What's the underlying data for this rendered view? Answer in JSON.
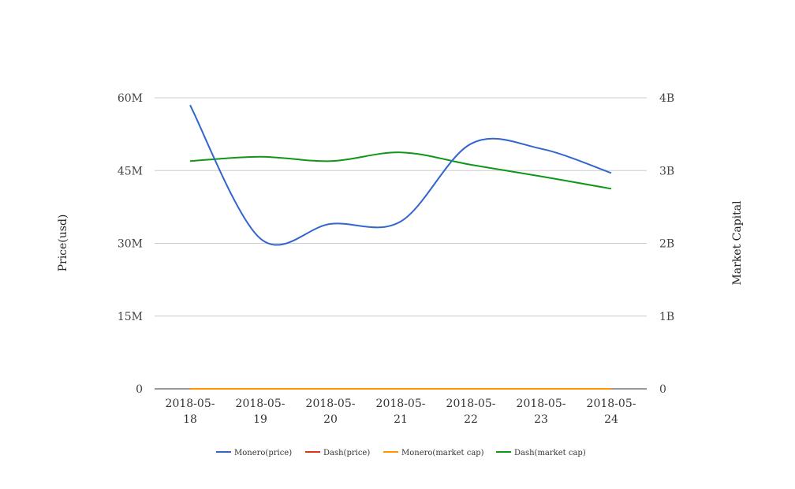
{
  "chart_data": {
    "type": "line",
    "categories": [
      "2018-05-18",
      "2018-05-19",
      "2018-05-20",
      "2018-05-21",
      "2018-05-22",
      "2018-05-23",
      "2018-05-24"
    ],
    "category_lines": [
      [
        "2018-05-",
        "18"
      ],
      [
        "2018-05-",
        "19"
      ],
      [
        "2018-05-",
        "20"
      ],
      [
        "2018-05-",
        "21"
      ],
      [
        "2018-05-",
        "22"
      ],
      [
        "2018-05-",
        "23"
      ],
      [
        "2018-05-",
        "24"
      ]
    ],
    "left_axis": {
      "label": "Price(usd)",
      "range": [
        0,
        60000000
      ],
      "ticks": [
        0,
        15000000,
        30000000,
        45000000,
        60000000
      ],
      "tick_labels": [
        "0",
        "15M",
        "30M",
        "45M",
        "60M"
      ]
    },
    "right_axis": {
      "label": "Market Capital",
      "range": [
        0,
        4000000000
      ],
      "ticks": [
        0,
        1000000000,
        2000000000,
        3000000000,
        4000000000
      ],
      "tick_labels": [
        "0",
        "1B",
        "2B",
        "3B",
        "4B"
      ]
    },
    "grid": true,
    "legend_position": "bottom",
    "series": [
      {
        "name": "Monero(price)",
        "axis": "left",
        "color": "#3366cc",
        "values": [
          58500000,
          31000000,
          34000000,
          34500000,
          50500000,
          49500000,
          44500000
        ]
      },
      {
        "name": "Dash(price)",
        "axis": "left",
        "color": "#dc3912",
        "values": [
          0,
          0,
          0,
          0,
          0,
          0,
          0
        ]
      },
      {
        "name": "Monero(market cap)",
        "axis": "right",
        "color": "#ff9900",
        "values": [
          0,
          0,
          0,
          0,
          0,
          0,
          0
        ]
      },
      {
        "name": "Dash(market cap)",
        "axis": "right",
        "color": "#109618",
        "values": [
          3130000000,
          3190000000,
          3130000000,
          3250000000,
          3080000000,
          2920000000,
          2750000000
        ]
      }
    ]
  }
}
